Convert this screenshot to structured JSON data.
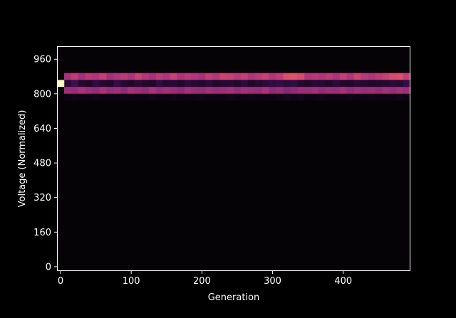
{
  "chart_data": {
    "type": "heatmap",
    "title": "",
    "xlabel": "Generation",
    "ylabel": "Voltage (Normalized)",
    "xlim": [
      -5,
      495
    ],
    "ylim": [
      -20,
      1020
    ],
    "x_ticks": [
      0,
      100,
      200,
      300,
      400
    ],
    "x_tick_labels": [
      "0",
      "100",
      "200",
      "300",
      "400"
    ],
    "y_ticks": [
      0,
      160,
      320,
      480,
      640,
      800,
      960
    ],
    "y_tick_labels": [
      "0",
      "160",
      "320",
      "480",
      "640",
      "800",
      "960"
    ],
    "x_bin_width": 10,
    "y_bin_height": 32,
    "colormap": "magma",
    "colors": {
      "background": "#000000",
      "axes_face": "#050306",
      "foreground": "#ffffff",
      "colormap_stops": [
        "#050306",
        "#2a0f42",
        "#6a1f71",
        "#b0357a",
        "#e85b68",
        "#fcb07a",
        "#fcfdbf"
      ]
    },
    "rows": [
      {
        "y_range": [
          864,
          896
        ],
        "x_start": 5,
        "intensities": [
          0.48,
          0.54,
          0.47,
          0.52,
          0.5,
          0.55,
          0.47,
          0.5,
          0.53,
          0.49,
          0.56,
          0.51,
          0.48,
          0.53,
          0.5,
          0.56,
          0.49,
          0.52,
          0.5,
          0.48,
          0.54,
          0.51,
          0.57,
          0.56,
          0.52,
          0.55,
          0.5,
          0.53,
          0.56,
          0.5,
          0.54,
          0.62,
          0.63,
          0.6,
          0.5,
          0.52,
          0.5,
          0.53,
          0.49,
          0.55,
          0.5,
          0.57,
          0.52,
          0.5,
          0.53,
          0.56,
          0.6,
          0.62,
          0.55
        ]
      },
      {
        "y_range": [
          832,
          864
        ],
        "x_start": 5,
        "intensities": [
          0.14,
          0.2,
          0.12,
          0.1,
          0.16,
          0.12,
          0.1,
          0.18,
          0.12,
          0.1,
          0.14,
          0.11,
          0.1,
          0.16,
          0.12,
          0.13,
          0.1,
          0.15,
          0.12,
          0.11,
          0.14,
          0.1,
          0.12,
          0.13,
          0.11,
          0.15,
          0.1,
          0.12,
          0.14,
          0.16,
          0.18,
          0.15,
          0.17,
          0.12,
          0.1,
          0.13,
          0.12,
          0.1,
          0.14,
          0.11,
          0.1,
          0.13,
          0.12,
          0.1,
          0.11,
          0.12,
          0.14,
          0.13,
          0.18
        ]
      },
      {
        "y_range": [
          800,
          832
        ],
        "x_start": 5,
        "intensities": [
          0.46,
          0.44,
          0.48,
          0.45,
          0.43,
          0.48,
          0.44,
          0.46,
          0.42,
          0.47,
          0.45,
          0.43,
          0.48,
          0.44,
          0.46,
          0.45,
          0.42,
          0.47,
          0.44,
          0.43,
          0.46,
          0.44,
          0.45,
          0.47,
          0.43,
          0.46,
          0.45,
          0.44,
          0.48,
          0.42,
          0.44,
          0.4,
          0.42,
          0.45,
          0.44,
          0.46,
          0.43,
          0.45,
          0.44,
          0.47,
          0.43,
          0.46,
          0.44,
          0.45,
          0.43,
          0.46,
          0.44,
          0.47,
          0.45
        ]
      },
      {
        "y_range": [
          832,
          864
        ],
        "x_start": -5,
        "intensities": [
          1.0
        ]
      },
      {
        "y_range": [
          768,
          800
        ],
        "x_start": 5,
        "intensities": [
          0.03,
          0.04,
          0.03,
          0.03,
          0.04,
          0.03,
          0.03,
          0.03,
          0.04,
          0.03,
          0.03,
          0.03,
          0.04,
          0.03,
          0.03,
          0.04,
          0.03,
          0.03,
          0.03,
          0.04,
          0.03,
          0.03,
          0.03,
          0.04,
          0.03,
          0.03,
          0.04,
          0.03,
          0.03,
          0.03,
          0.04,
          0.05,
          0.04,
          0.05,
          0.03,
          0.03,
          0.04,
          0.03,
          0.03,
          0.03,
          0.04,
          0.03,
          0.03,
          0.04,
          0.03,
          0.03,
          0.03,
          0.04,
          0.03
        ]
      }
    ]
  }
}
